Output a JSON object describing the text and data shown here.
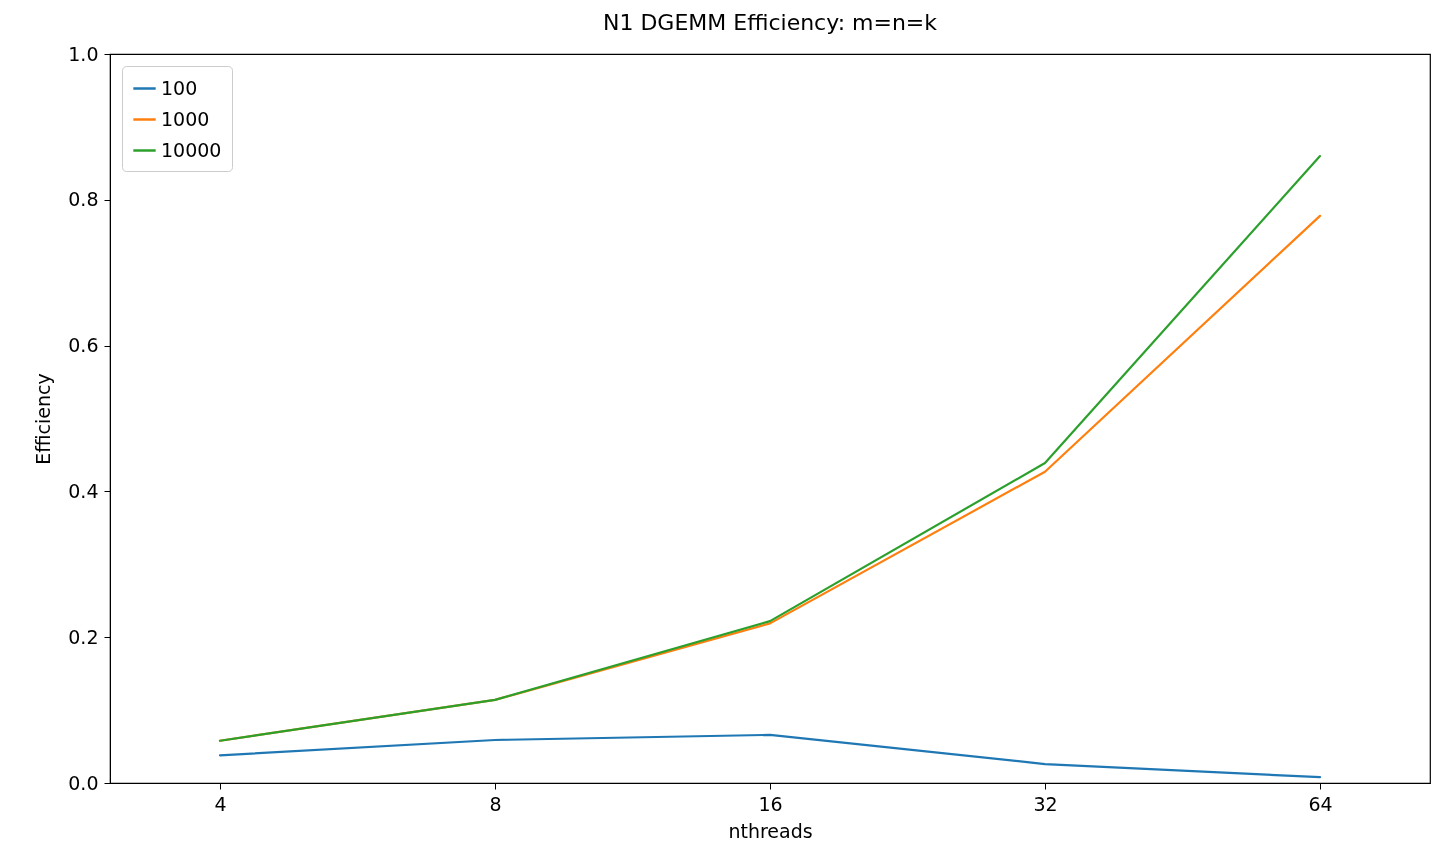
{
  "chart_data": {
    "type": "line",
    "title": "N1 DGEMM Efficiency: m=n=k",
    "xlabel": "nthreads",
    "ylabel": "Efficiency",
    "categories": [
      "4",
      "8",
      "16",
      "32",
      "64"
    ],
    "series": [
      {
        "name": "100",
        "color": "#1f77b4",
        "values": [
          0.038,
          0.059,
          0.066,
          0.026,
          0.008
        ]
      },
      {
        "name": "1000",
        "color": "#ff7f0e",
        "values": [
          0.058,
          0.114,
          0.219,
          0.427,
          0.778
        ]
      },
      {
        "name": "10000",
        "color": "#2ca02c",
        "values": [
          0.058,
          0.114,
          0.222,
          0.439,
          0.86
        ]
      }
    ],
    "ylim": [
      0,
      1
    ],
    "yticks": [
      {
        "value": 0,
        "label": "0.0"
      },
      0.2,
      0.4,
      0.6,
      0.8,
      {
        "value": 1,
        "label": "1.0"
      }
    ],
    "legend": "top left"
  }
}
